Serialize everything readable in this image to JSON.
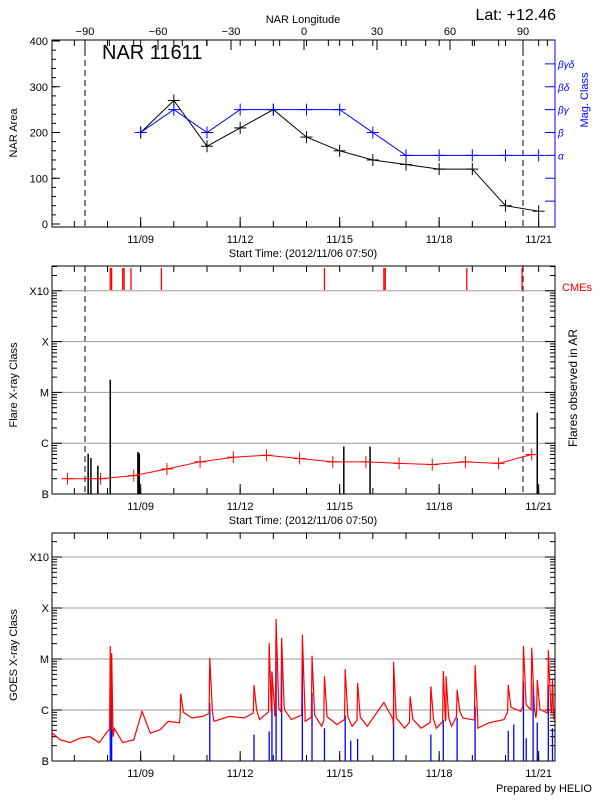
{
  "header": {
    "latitude_label": "Lat: +12.46",
    "title": "NAR 11611",
    "top_axis_label": "NAR Longitude",
    "footer": "Prepared by HELIO"
  },
  "chart_data": [
    {
      "type": "line",
      "title": "NAR 11611",
      "xlabel": "Start Time: (2012/11/06 07:50)",
      "ylabel": "NAR Area",
      "y2label": "Mag. Class",
      "x2label": "NAR Longitude",
      "xlim": [
        "2012/11/06 07:50",
        "2012/11/21 11:50"
      ],
      "ylim": [
        0,
        400
      ],
      "yticks": [
        0,
        100,
        200,
        300,
        400
      ],
      "xtick_labels": [
        "11/09",
        "11/12",
        "11/15",
        "11/18",
        "11/21"
      ],
      "x2ticks": [
        -90,
        -60,
        -30,
        0,
        30,
        60,
        90
      ],
      "limb_longitudes": [
        -90,
        90
      ],
      "mag_classes": [
        {
          "label": "α",
          "level": 150
        },
        {
          "label": "β",
          "level": 200
        },
        {
          "label": "βγ",
          "level": 250
        },
        {
          "label": "βδ",
          "level": 300
        },
        {
          "label": "βγδ",
          "level": 350
        }
      ],
      "colors": {
        "area": "#000000",
        "mag_class": "#0000ff"
      },
      "series": [
        {
          "name": "NAR Area",
          "axis": "left",
          "x": [
            "2012/11/09 00:00",
            "2012/11/10 00:00",
            "2012/11/11 00:00",
            "2012/11/12 00:00",
            "2012/11/13 00:00",
            "2012/11/14 00:00",
            "2012/11/15 00:00",
            "2012/11/16 00:00",
            "2012/11/17 00:00",
            "2012/11/18 00:00",
            "2012/11/19 00:00",
            "2012/11/20 00:00",
            "2012/11/21 00:00"
          ],
          "values": [
            200,
            270,
            170,
            210,
            250,
            190,
            160,
            140,
            130,
            120,
            120,
            40,
            28
          ]
        },
        {
          "name": "Mag. Class",
          "axis": "right",
          "x": [
            "2012/11/09 00:00",
            "2012/11/10 00:00",
            "2012/11/11 00:00",
            "2012/11/12 00:00",
            "2012/11/13 00:00",
            "2012/11/14 00:00",
            "2012/11/15 00:00",
            "2012/11/16 00:00",
            "2012/11/17 00:00",
            "2012/11/18 00:00",
            "2012/11/19 00:00",
            "2012/11/20 00:00",
            "2012/11/21 00:00"
          ],
          "values": [
            "β",
            "βγ",
            "β",
            "βγ",
            "βγ",
            "βγ",
            "βγ",
            "β",
            "α",
            "α",
            "α",
            "α",
            "α"
          ]
        }
      ]
    },
    {
      "type": "bar",
      "xlabel": "Start Time: (2012/11/06 07:50)",
      "ylabel": "Flare X-ray Class",
      "y2label": "Flares observed in AR",
      "cme_label": "CMEs",
      "yscale": "log",
      "ylim": [
        1e-07,
        0.003
      ],
      "class_ticks": [
        {
          "label": "B",
          "value": 1e-07
        },
        {
          "label": "C",
          "value": 1e-06
        },
        {
          "label": "M",
          "value": 1e-05
        },
        {
          "label": "X",
          "value": 0.0001
        },
        {
          "label": "X10",
          "value": 0.001
        }
      ],
      "xtick_labels": [
        "11/09",
        "11/12",
        "11/15",
        "11/18",
        "11/21"
      ],
      "grid": true,
      "colors": {
        "flares": "#000000",
        "average": "#ff0000",
        "cmes": "#ff0000"
      },
      "flares": {
        "x": [
          "2012/11/07 10:00",
          "2012/11/07 12:00",
          "2012/11/07 17:00",
          "2012/11/08 02:00",
          "2012/11/08 22:00",
          "2012/11/08 23:00",
          "2012/11/15 03:00",
          "2012/11/15 22:00",
          "2012/11/20 23:00"
        ],
        "values": [
          6.2e-07,
          5.1e-07,
          3.6e-07,
          1.78e-05,
          6.7e-07,
          6.3e-07,
          8.6e-07,
          8.6e-07,
          4e-06
        ]
      },
      "average": {
        "x": [
          "2012/11/06 19:00",
          "2012/11/07 19:00",
          "2012/11/08 19:00",
          "2012/11/09 19:00",
          "2012/11/10 19:00",
          "2012/11/11 19:00",
          "2012/11/12 19:00",
          "2012/11/13 19:00",
          "2012/11/14 19:00",
          "2012/11/15 19:00",
          "2012/11/16 19:00",
          "2012/11/17 19:00",
          "2012/11/18 19:00",
          "2012/11/19 19:00",
          "2012/11/20 19:00"
        ],
        "values": [
          2e-07,
          2e-07,
          2.3e-07,
          3.1e-07,
          4.3e-07,
          5.3e-07,
          5.8e-07,
          5e-07,
          4.3e-07,
          4.3e-07,
          4e-07,
          3.8e-07,
          4.3e-07,
          4e-07,
          6e-07
        ]
      },
      "cmes": [
        "2012/11/08 02:00",
        "2012/11/08 03:00",
        "2012/11/08 11:00",
        "2012/11/08 12:00",
        "2012/11/08 17:00",
        "2012/11/09 15:00",
        "2012/11/14 13:00",
        "2012/11/16 08:00",
        "2012/11/16 09:00",
        "2012/11/18 20:00",
        "2012/11/20 12:00"
      ]
    },
    {
      "type": "line",
      "ylabel": "GOES X-ray Class",
      "yscale": "log",
      "ylim": [
        1e-07,
        0.003
      ],
      "class_ticks": [
        {
          "label": "B",
          "value": 1e-07
        },
        {
          "label": "C",
          "value": 1e-06
        },
        {
          "label": "M",
          "value": 1e-05
        },
        {
          "label": "X",
          "value": 0.0001
        },
        {
          "label": "X10",
          "value": 0.001
        }
      ],
      "xtick_labels": [
        "11/09",
        "11/12",
        "11/15",
        "11/18",
        "11/21"
      ],
      "grid": true,
      "colors": {
        "long_channel": "#ff0000",
        "short_channel": "#0000ff"
      },
      "long_channel_background": {
        "x": [
          "2012/11/06 08:00",
          "2012/11/06 14:00",
          "2012/11/06 21:00",
          "2012/11/07 04:00",
          "2012/11/07 11:00",
          "2012/11/07 18:00",
          "2012/11/07 23:00",
          "2012/11/08 04:00",
          "2012/11/08 11:00",
          "2012/11/08 19:00",
          "2012/11/09 01:00",
          "2012/11/09 07:00",
          "2012/11/09 14:00",
          "2012/11/09 20:00",
          "2012/11/10 04:00",
          "2012/11/10 13:00",
          "2012/11/10 21:00",
          "2012/11/11 05:00",
          "2012/11/11 16:00",
          "2012/11/12 03:00",
          "2012/11/12 14:00",
          "2012/11/13 01:00",
          "2012/11/13 13:00",
          "2012/11/13 23:00",
          "2012/11/14 11:00",
          "2012/11/14 22:00",
          "2012/11/15 09:00",
          "2012/11/15 20:00",
          "2012/11/16 08:00",
          "2012/11/16 15:00",
          "2012/11/16 23:00",
          "2012/11/17 11:00",
          "2012/11/17 22:00",
          "2012/11/18 09:00",
          "2012/11/18 17:00",
          "2012/11/19 04:00",
          "2012/11/19 12:00",
          "2012/11/19 23:00",
          "2012/11/20 11:00",
          "2012/11/20 22:00",
          "2012/11/21 11:00"
        ],
        "values": [
          3.5e-07,
          2.6e-07,
          2.3e-07,
          2.8e-07,
          3e-07,
          2.3e-07,
          3.5e-07,
          3e-07,
          2.3e-07,
          2.6e-07,
          9.4e-07,
          3.5e-07,
          4.1e-07,
          6e-07,
          5.6e-07,
          7e-07,
          7.5e-07,
          6e-07,
          7.5e-07,
          7e-07,
          6.5e-07,
          7.5e-07,
          6.5e-07,
          6e-07,
          4.8e-07,
          5.2e-07,
          4.8e-07,
          4.8e-07,
          1.4e-06,
          4.8e-07,
          4.4e-07,
          4.4e-07,
          4.4e-07,
          4.8e-07,
          7e-07,
          4.4e-07,
          5.6e-07,
          6.5e-07,
          9.4e-07,
          7e-07,
          6.5e-07
        ]
      },
      "long_channel_peaks": {
        "x": [
          "2012/11/08 02:00",
          "2012/11/08 03:00",
          "2012/11/10 05:00",
          "2012/11/11 02:00",
          "2012/11/12 10:00",
          "2012/11/12 21:00",
          "2012/11/12 23:00",
          "2012/11/13 02:00",
          "2012/11/13 06:00",
          "2012/11/13 21:00",
          "2012/11/14 04:00",
          "2012/11/14 13:00",
          "2012/11/15 04:00",
          "2012/11/15 13:00",
          "2012/11/16 15:00",
          "2012/11/17 03:00",
          "2012/11/17 18:00",
          "2012/11/18 03:00",
          "2012/11/18 05:00",
          "2012/11/18 13:00",
          "2012/11/19 02:00",
          "2012/11/20 02:00",
          "2012/11/20 13:00",
          "2012/11/20 19:00",
          "2012/11/20 23:00",
          "2012/11/21 07:00",
          "2012/11/21 10:00"
        ],
        "values": [
          1.8e-05,
          1.3e-05,
          2.1e-06,
          1.06e-05,
          3.1e-06,
          2.06e-05,
          5.3e-06,
          6.1e-05,
          2.6e-05,
          3e-05,
          1.16e-05,
          4.6e-06,
          6.4e-06,
          3.4e-06,
          8.9e-06,
          1.85e-06,
          2.9e-06,
          5.8e-06,
          4.6e-06,
          2.5e-06,
          7.6e-06,
          3.1e-06,
          1.8e-05,
          1.67e-05,
          3.9e-06,
          1.5e-05,
          4.2e-06
        ]
      },
      "short_channel_peaks": {
        "x": [
          "2012/11/08 02:00",
          "2012/11/08 03:00",
          "2012/11/11 02:00",
          "2012/11/12 10:00",
          "2012/11/12 21:00",
          "2012/11/12 23:00",
          "2012/11/13 02:00",
          "2012/11/13 06:00",
          "2012/11/13 21:00",
          "2012/11/14 04:00",
          "2012/11/14 13:00",
          "2012/11/15 04:00",
          "2012/11/15 08:00",
          "2012/11/15 13:00",
          "2012/11/16 15:00",
          "2012/11/17 18:00",
          "2012/11/18 03:00",
          "2012/11/18 13:00",
          "2012/11/19 02:00",
          "2012/11/20 02:00",
          "2012/11/20 06:00",
          "2012/11/20 13:00",
          "2012/11/20 15:00",
          "2012/11/20 20:00",
          "2012/11/20 23:00",
          "2012/11/21 07:00",
          "2012/11/21 10:00"
        ],
        "values": [
          3.5e-06,
          1.9e-06,
          1.37e-06,
          3.3e-07,
          3.8e-07,
          5.7e-06,
          2.3e-05,
          7e-06,
          9.3e-06,
          2.2e-06,
          4.4e-07,
          7.7e-07,
          2.5e-07,
          2.7e-07,
          1.27e-06,
          3.3e-07,
          6.3e-07,
          7e-07,
          1.18e-06,
          3.9e-07,
          5.2e-07,
          3.6e-06,
          2.8e-07,
          3.3e-06,
          5.7e-07,
          3.1e-06,
          4.4e-07
        ]
      }
    }
  ]
}
